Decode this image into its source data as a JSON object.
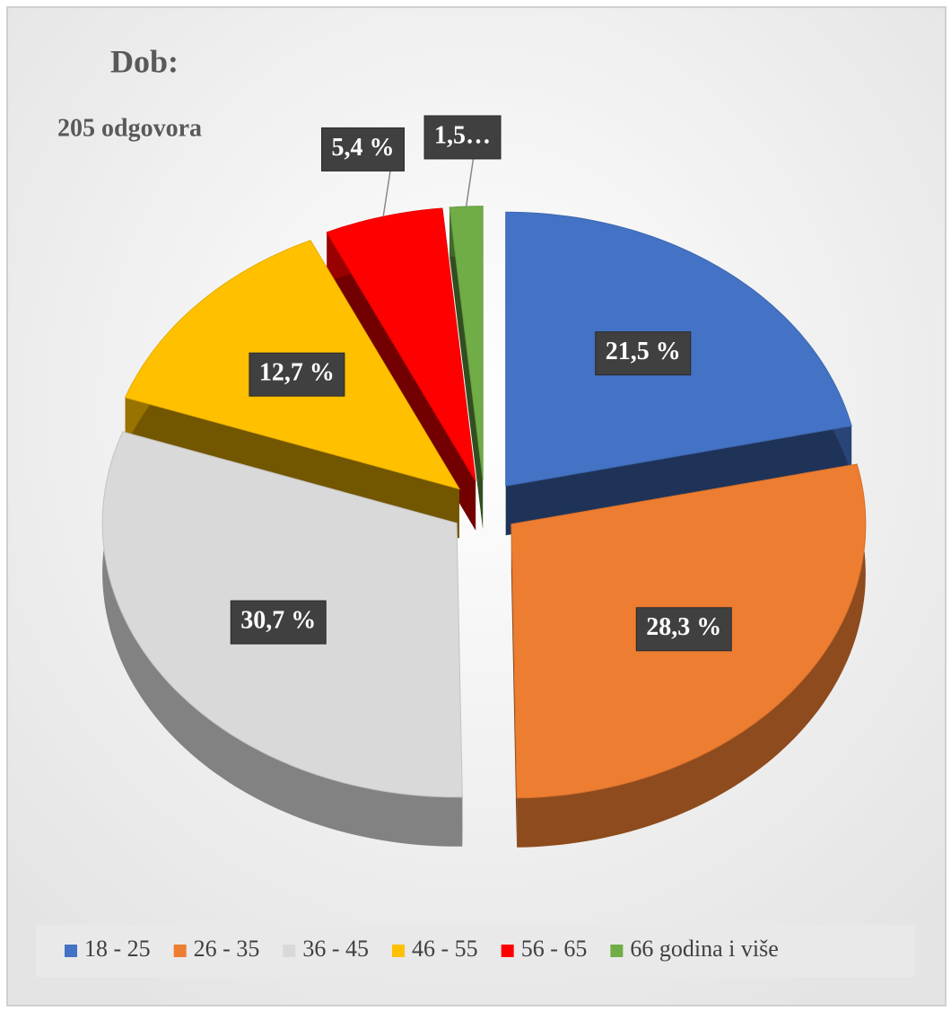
{
  "chart_data": {
    "type": "pie",
    "title": "Dob:",
    "subtitle": "205 odgovora",
    "categories": [
      "18 - 25",
      "26 - 35",
      "36 - 45",
      "46 - 55",
      "56 - 65",
      "66 godina i više"
    ],
    "values": [
      21.5,
      28.3,
      30.7,
      12.7,
      5.4,
      1.5
    ],
    "value_labels": [
      "21,5 %",
      "28,3 %",
      "30,7 %",
      "12,7 %",
      "5,4 %",
      "1,5…"
    ],
    "colors": [
      "#4472c4",
      "#ed7d31",
      "#d9d9d9",
      "#ffc000",
      "#ff0000",
      "#70ad47"
    ],
    "legend": "bottom"
  }
}
